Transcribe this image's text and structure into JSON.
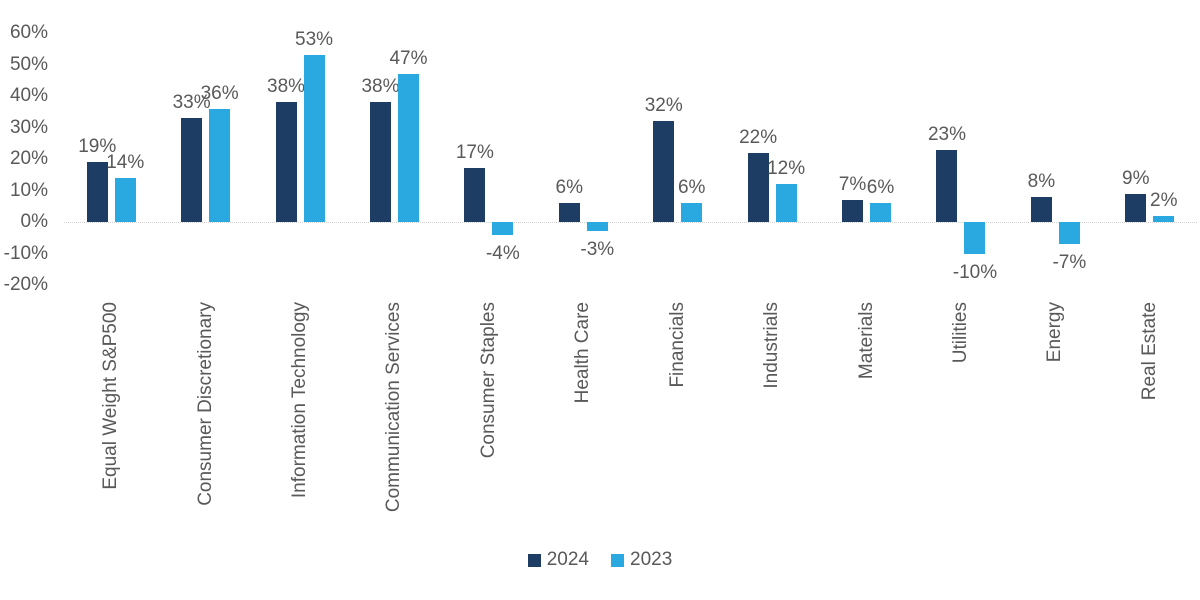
{
  "chart_data": {
    "type": "bar",
    "title": "",
    "xlabel": "",
    "ylabel": "",
    "categories": [
      "Equal Weight S&P500",
      "Consumer Discretionary",
      "Information Technology",
      "Communication Services",
      "Consumer Staples",
      "Health Care",
      "Financials",
      "Industrials",
      "Materials",
      "Utilities",
      "Energy",
      "Real Estate"
    ],
    "series": [
      {
        "name": "2024",
        "color": "#1e3d64",
        "values": [
          19,
          33,
          38,
          38,
          17,
          6,
          32,
          22,
          7,
          23,
          8,
          9
        ],
        "labels": [
          "19%",
          "33%",
          "38%",
          "38%",
          "17%",
          "6%",
          "32%",
          "22%",
          "7%",
          "23%",
          "8%",
          "9%"
        ]
      },
      {
        "name": "2023",
        "color": "#29a9e0",
        "values": [
          14,
          36,
          53,
          47,
          -4,
          -3,
          6,
          12,
          6,
          -10,
          -7,
          2
        ],
        "labels": [
          "14%",
          "36%",
          "53%",
          "47%",
          "-4%",
          "-3%",
          "6%",
          "12%",
          "6%",
          "-10%",
          "-7%",
          "2%"
        ]
      }
    ],
    "y_axis": {
      "min": -20,
      "max": 60,
      "ticks": [
        {
          "value": 60,
          "label": "60%"
        },
        {
          "value": 50,
          "label": "50%"
        },
        {
          "value": 40,
          "label": "40%"
        },
        {
          "value": 30,
          "label": "30%"
        },
        {
          "value": 20,
          "label": "20%"
        },
        {
          "value": 10,
          "label": "10%"
        },
        {
          "value": 0,
          "label": "0%"
        },
        {
          "value": -10,
          "label": "-10%"
        },
        {
          "value": -20,
          "label": "-20%"
        }
      ]
    },
    "grid": "zero-baseline-dotted-only",
    "legend_position": "bottom-center",
    "data_labels": "outside-end"
  },
  "colors": {
    "series_2024": "#1e3d64",
    "series_2023": "#29a9e0",
    "text": "#595959",
    "gridline": "#d2d2d2",
    "background": "#ffffff"
  }
}
